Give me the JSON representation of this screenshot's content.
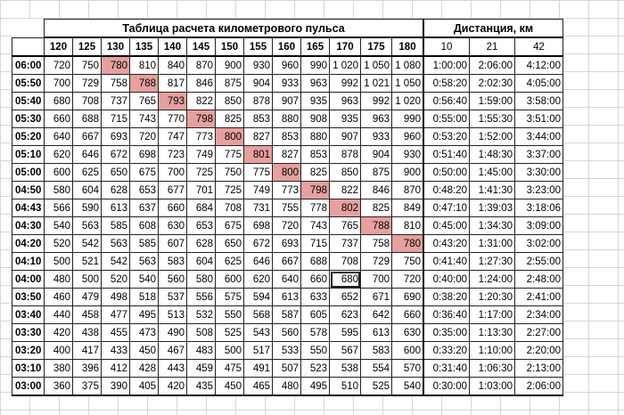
{
  "title": "Таблица расчета километрового пульса",
  "distance_title": "Дистанция, км",
  "cadences": [
    "120",
    "125",
    "130",
    "135",
    "140",
    "145",
    "150",
    "155",
    "160",
    "165",
    "170",
    "175",
    "180"
  ],
  "distances": [
    "10",
    "21",
    "42"
  ],
  "highlight_color": "#e6a09d",
  "rows": [
    {
      "pace": "06:00",
      "v": [
        "720",
        "750",
        "780",
        "810",
        "840",
        "870",
        "900",
        "930",
        "960",
        "990",
        "1 020",
        "1 050",
        "1 080"
      ],
      "d": [
        "1:00:00",
        "2:06:00",
        "4:12:00"
      ],
      "hl": 2
    },
    {
      "pace": "05:50",
      "v": [
        "700",
        "729",
        "758",
        "788",
        "817",
        "846",
        "875",
        "904",
        "933",
        "963",
        "992",
        "1 021",
        "1 050"
      ],
      "d": [
        "0:58:20",
        "2:02:30",
        "4:05:00"
      ],
      "hl": 3
    },
    {
      "pace": "05:40",
      "v": [
        "680",
        "708",
        "737",
        "765",
        "793",
        "822",
        "850",
        "878",
        "907",
        "935",
        "963",
        "992",
        "1 020"
      ],
      "d": [
        "0:56:40",
        "1:59:00",
        "3:58:00"
      ],
      "hl": 4
    },
    {
      "pace": "05:30",
      "v": [
        "660",
        "688",
        "715",
        "743",
        "770",
        "798",
        "825",
        "853",
        "880",
        "908",
        "935",
        "963",
        "990"
      ],
      "d": [
        "0:55:00",
        "1:55:30",
        "3:51:00"
      ],
      "hl": 5
    },
    {
      "pace": "05:20",
      "v": [
        "640",
        "667",
        "693",
        "720",
        "747",
        "773",
        "800",
        "827",
        "853",
        "880",
        "907",
        "933",
        "960"
      ],
      "d": [
        "0:53:20",
        "1:52:00",
        "3:44:00"
      ],
      "hl": 6
    },
    {
      "pace": "05:10",
      "v": [
        "620",
        "646",
        "672",
        "698",
        "723",
        "749",
        "775",
        "801",
        "827",
        "853",
        "878",
        "904",
        "930"
      ],
      "d": [
        "0:51:40",
        "1:48:30",
        "3:37:00"
      ],
      "hl": 7
    },
    {
      "pace": "05:00",
      "v": [
        "600",
        "625",
        "650",
        "675",
        "700",
        "725",
        "750",
        "775",
        "800",
        "825",
        "850",
        "875",
        "900"
      ],
      "d": [
        "0:50:00",
        "1:45:00",
        "3:30:00"
      ],
      "hl": 8
    },
    {
      "pace": "04:50",
      "v": [
        "580",
        "604",
        "628",
        "653",
        "677",
        "701",
        "725",
        "749",
        "773",
        "798",
        "822",
        "846",
        "870"
      ],
      "d": [
        "0:48:20",
        "1:41:30",
        "3:23:00"
      ],
      "hl": 9
    },
    {
      "pace": "04:43",
      "v": [
        "566",
        "590",
        "613",
        "637",
        "660",
        "684",
        "708",
        "731",
        "755",
        "778",
        "802",
        "825",
        "849"
      ],
      "d": [
        "0:47:10",
        "1:39:03",
        "3:18:06"
      ],
      "hl": 10
    },
    {
      "pace": "04:30",
      "v": [
        "540",
        "563",
        "585",
        "608",
        "630",
        "653",
        "675",
        "698",
        "720",
        "743",
        "765",
        "788",
        "810"
      ],
      "d": [
        "0:45:00",
        "1:34:30",
        "3:09:00"
      ],
      "hl": 11
    },
    {
      "pace": "04:20",
      "v": [
        "520",
        "542",
        "563",
        "585",
        "607",
        "628",
        "650",
        "672",
        "693",
        "715",
        "737",
        "758",
        "780"
      ],
      "d": [
        "0:43:20",
        "1:31:00",
        "3:02:00"
      ],
      "hl": 12
    },
    {
      "pace": "04:10",
      "v": [
        "500",
        "521",
        "542",
        "563",
        "583",
        "604",
        "625",
        "646",
        "667",
        "688",
        "708",
        "729",
        "750"
      ],
      "d": [
        "0:41:40",
        "1:27:30",
        "2:55:00"
      ],
      "hl": -1
    },
    {
      "pace": "04:00",
      "v": [
        "480",
        "500",
        "520",
        "540",
        "560",
        "580",
        "600",
        "620",
        "640",
        "660",
        "680",
        "700",
        "720"
      ],
      "d": [
        "0:40:00",
        "1:24:00",
        "2:48:00"
      ],
      "hl": -1,
      "sel": 10
    },
    {
      "pace": "03:50",
      "v": [
        "460",
        "479",
        "498",
        "518",
        "537",
        "556",
        "575",
        "594",
        "613",
        "633",
        "652",
        "671",
        "690"
      ],
      "d": [
        "0:38:20",
        "1:20:30",
        "2:41:00"
      ],
      "hl": -1
    },
    {
      "pace": "03:40",
      "v": [
        "440",
        "458",
        "477",
        "495",
        "513",
        "532",
        "550",
        "568",
        "587",
        "605",
        "623",
        "642",
        "660"
      ],
      "d": [
        "0:36:40",
        "1:17:00",
        "2:34:00"
      ],
      "hl": -1
    },
    {
      "pace": "03:30",
      "v": [
        "420",
        "438",
        "455",
        "473",
        "490",
        "508",
        "525",
        "543",
        "560",
        "578",
        "595",
        "613",
        "630"
      ],
      "d": [
        "0:35:00",
        "1:13:30",
        "2:27:00"
      ],
      "hl": -1
    },
    {
      "pace": "03:20",
      "v": [
        "400",
        "417",
        "433",
        "450",
        "467",
        "483",
        "500",
        "517",
        "533",
        "550",
        "567",
        "583",
        "600"
      ],
      "d": [
        "0:33:20",
        "1:10:00",
        "2:20:00"
      ],
      "hl": -1
    },
    {
      "pace": "03:10",
      "v": [
        "380",
        "396",
        "412",
        "428",
        "443",
        "459",
        "475",
        "491",
        "507",
        "523",
        "538",
        "554",
        "570"
      ],
      "d": [
        "0:31:40",
        "1:06:30",
        "2:13:00"
      ],
      "hl": -1
    },
    {
      "pace": "03:00",
      "v": [
        "360",
        "375",
        "390",
        "405",
        "420",
        "435",
        "450",
        "465",
        "480",
        "495",
        "510",
        "525",
        "540"
      ],
      "d": [
        "0:30:00",
        "1:03:00",
        "2:06:00"
      ],
      "hl": -1
    }
  ]
}
